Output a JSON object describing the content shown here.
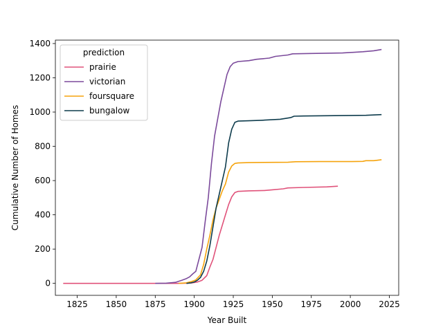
{
  "chart_data": {
    "type": "line",
    "xlabel": "Year Built",
    "ylabel": "Cumulative Number of Homes",
    "xlim": [
      1811,
      2031
    ],
    "ylim": [
      -70,
      1420
    ],
    "xticks": [
      1825,
      1850,
      1875,
      1900,
      1925,
      1950,
      1975,
      2000,
      2025
    ],
    "yticks": [
      0,
      200,
      400,
      600,
      800,
      1000,
      1200,
      1400
    ],
    "grid": false,
    "legend": {
      "title": "prediction",
      "placement": "upper-left"
    },
    "series": [
      {
        "name": "prairie",
        "color": "#e0527a",
        "points": [
          [
            1816,
            0
          ],
          [
            1840,
            0
          ],
          [
            1860,
            0
          ],
          [
            1878,
            0
          ],
          [
            1890,
            0
          ],
          [
            1898,
            2
          ],
          [
            1902,
            8
          ],
          [
            1905,
            18
          ],
          [
            1908,
            45
          ],
          [
            1910,
            95
          ],
          [
            1912,
            140
          ],
          [
            1914,
            210
          ],
          [
            1916,
            280
          ],
          [
            1918,
            340
          ],
          [
            1920,
            400
          ],
          [
            1922,
            460
          ],
          [
            1924,
            505
          ],
          [
            1926,
            530
          ],
          [
            1928,
            537
          ],
          [
            1935,
            540
          ],
          [
            1945,
            542
          ],
          [
            1950,
            546
          ],
          [
            1957,
            552
          ],
          [
            1960,
            557
          ],
          [
            1970,
            560
          ],
          [
            1985,
            563
          ],
          [
            1992,
            567
          ]
        ]
      },
      {
        "name": "victorian",
        "color": "#7b4a9b",
        "points": [
          [
            1875,
            0
          ],
          [
            1882,
            1
          ],
          [
            1888,
            6
          ],
          [
            1892,
            18
          ],
          [
            1895,
            28
          ],
          [
            1897,
            38
          ],
          [
            1899,
            55
          ],
          [
            1901,
            70
          ],
          [
            1903,
            140
          ],
          [
            1905,
            210
          ],
          [
            1907,
            360
          ],
          [
            1909,
            500
          ],
          [
            1911,
            700
          ],
          [
            1913,
            860
          ],
          [
            1915,
            960
          ],
          [
            1917,
            1060
          ],
          [
            1919,
            1140
          ],
          [
            1921,
            1220
          ],
          [
            1923,
            1265
          ],
          [
            1925,
            1285
          ],
          [
            1928,
            1295
          ],
          [
            1935,
            1300
          ],
          [
            1940,
            1308
          ],
          [
            1948,
            1315
          ],
          [
            1952,
            1325
          ],
          [
            1960,
            1333
          ],
          [
            1963,
            1340
          ],
          [
            1975,
            1342
          ],
          [
            1995,
            1345
          ],
          [
            2008,
            1352
          ],
          [
            2015,
            1358
          ],
          [
            2020,
            1365
          ]
        ]
      },
      {
        "name": "foursquare",
        "color": "#f5a30c",
        "points": [
          [
            1890,
            0
          ],
          [
            1895,
            3
          ],
          [
            1898,
            10
          ],
          [
            1901,
            20
          ],
          [
            1904,
            50
          ],
          [
            1906,
            110
          ],
          [
            1908,
            200
          ],
          [
            1910,
            280
          ],
          [
            1912,
            370
          ],
          [
            1914,
            440
          ],
          [
            1916,
            490
          ],
          [
            1918,
            540
          ],
          [
            1920,
            580
          ],
          [
            1922,
            650
          ],
          [
            1924,
            685
          ],
          [
            1926,
            700
          ],
          [
            1928,
            703
          ],
          [
            1935,
            705
          ],
          [
            1945,
            706
          ],
          [
            1960,
            707
          ],
          [
            1965,
            710
          ],
          [
            1980,
            711
          ],
          [
            2000,
            711
          ],
          [
            2008,
            712
          ],
          [
            2010,
            716
          ],
          [
            2015,
            716
          ],
          [
            2020,
            722
          ]
        ]
      },
      {
        "name": "bungalow",
        "color": "#0d3b4c",
        "points": [
          [
            1895,
            0
          ],
          [
            1898,
            3
          ],
          [
            1900,
            8
          ],
          [
            1902,
            18
          ],
          [
            1904,
            35
          ],
          [
            1906,
            70
          ],
          [
            1908,
            130
          ],
          [
            1910,
            220
          ],
          [
            1912,
            330
          ],
          [
            1914,
            440
          ],
          [
            1916,
            520
          ],
          [
            1918,
            600
          ],
          [
            1920,
            680
          ],
          [
            1922,
            820
          ],
          [
            1924,
            900
          ],
          [
            1926,
            940
          ],
          [
            1928,
            947
          ],
          [
            1935,
            949
          ],
          [
            1943,
            952
          ],
          [
            1955,
            958
          ],
          [
            1962,
            968
          ],
          [
            1964,
            976
          ],
          [
            1970,
            977
          ],
          [
            1990,
            979
          ],
          [
            2010,
            981
          ],
          [
            2020,
            985
          ]
        ]
      }
    ]
  }
}
